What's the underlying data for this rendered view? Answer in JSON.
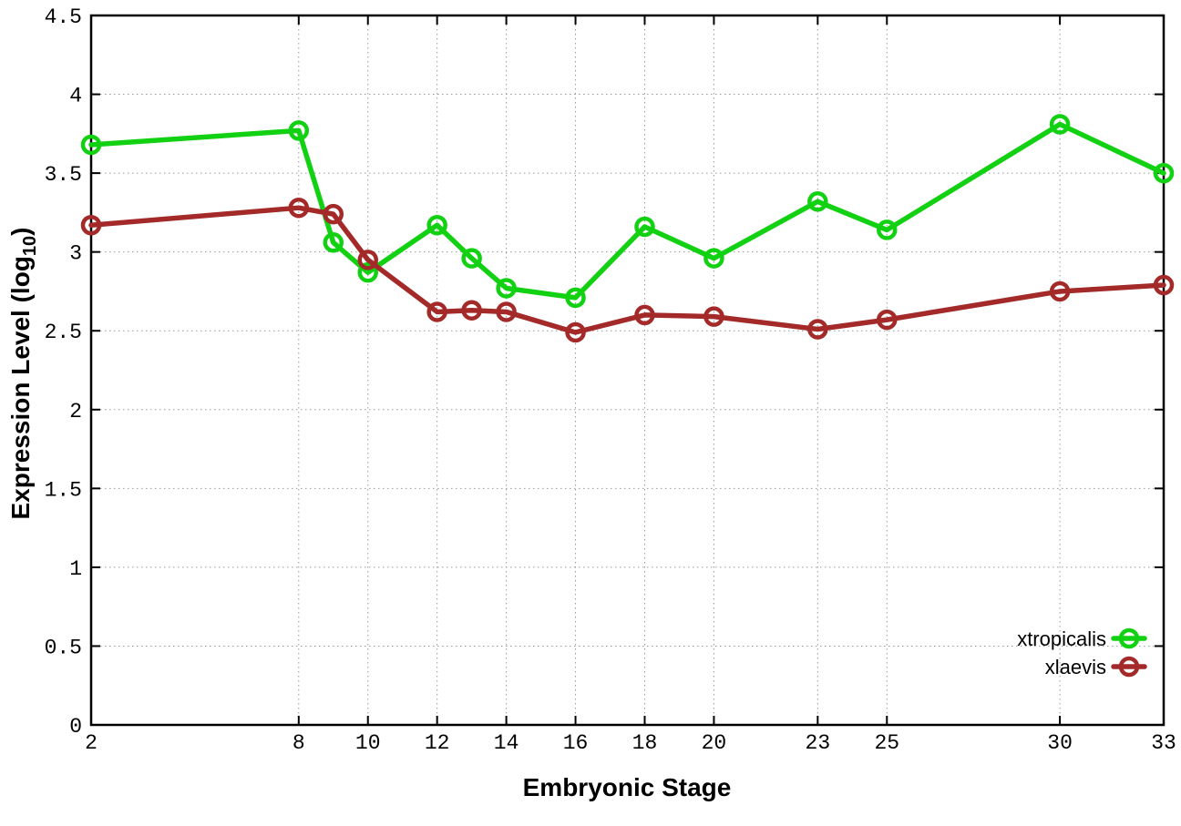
{
  "chart_data": {
    "type": "line",
    "title": "",
    "xlabel": "Embryonic Stage",
    "ylabel": "Expression Level (log10)",
    "ylabel_parts": [
      {
        "text": "Expression Level (log",
        "subscript": false
      },
      {
        "text": "10",
        "subscript": true
      },
      {
        "text": ")",
        "subscript": false
      }
    ],
    "x": [
      2,
      8,
      9,
      10,
      12,
      13,
      14,
      16,
      18,
      20,
      23,
      25,
      30,
      33
    ],
    "series": [
      {
        "name": "xtropicalis",
        "color": "#12d112",
        "values": [
          3.68,
          3.77,
          3.06,
          2.87,
          3.17,
          2.96,
          2.77,
          2.71,
          3.16,
          2.96,
          3.32,
          3.14,
          3.81,
          3.5
        ]
      },
      {
        "name": "xlaevis",
        "color": "#a42a2a",
        "values": [
          3.17,
          3.28,
          3.24,
          2.95,
          2.62,
          2.63,
          2.62,
          2.49,
          2.6,
          2.59,
          2.51,
          2.57,
          2.75,
          2.79
        ]
      }
    ],
    "xlim": [
      2,
      33
    ],
    "ylim": [
      0,
      4.5
    ],
    "xticks": {
      "values": [
        2,
        8,
        10,
        12,
        14,
        16,
        18,
        20,
        23,
        25,
        30,
        33
      ],
      "labels": [
        "2",
        "8",
        "10",
        "12",
        "14",
        "16",
        "18",
        "20",
        "23",
        "25",
        "30",
        "33"
      ]
    },
    "yticks": {
      "values": [
        0,
        0.5,
        1,
        1.5,
        2,
        2.5,
        3,
        3.5,
        4,
        4.5
      ],
      "labels": [
        "0",
        "0.5",
        "1",
        "1.5",
        "2",
        "2.5",
        "3",
        "3.5",
        "4",
        "4.5"
      ]
    },
    "grid": true,
    "legend_position": "bottom-right",
    "marker": "open-circle"
  },
  "styles": {
    "background": "#ffffff",
    "axis_color": "#000000",
    "grid_color": "#999999",
    "tick_label_color": "#000000"
  }
}
